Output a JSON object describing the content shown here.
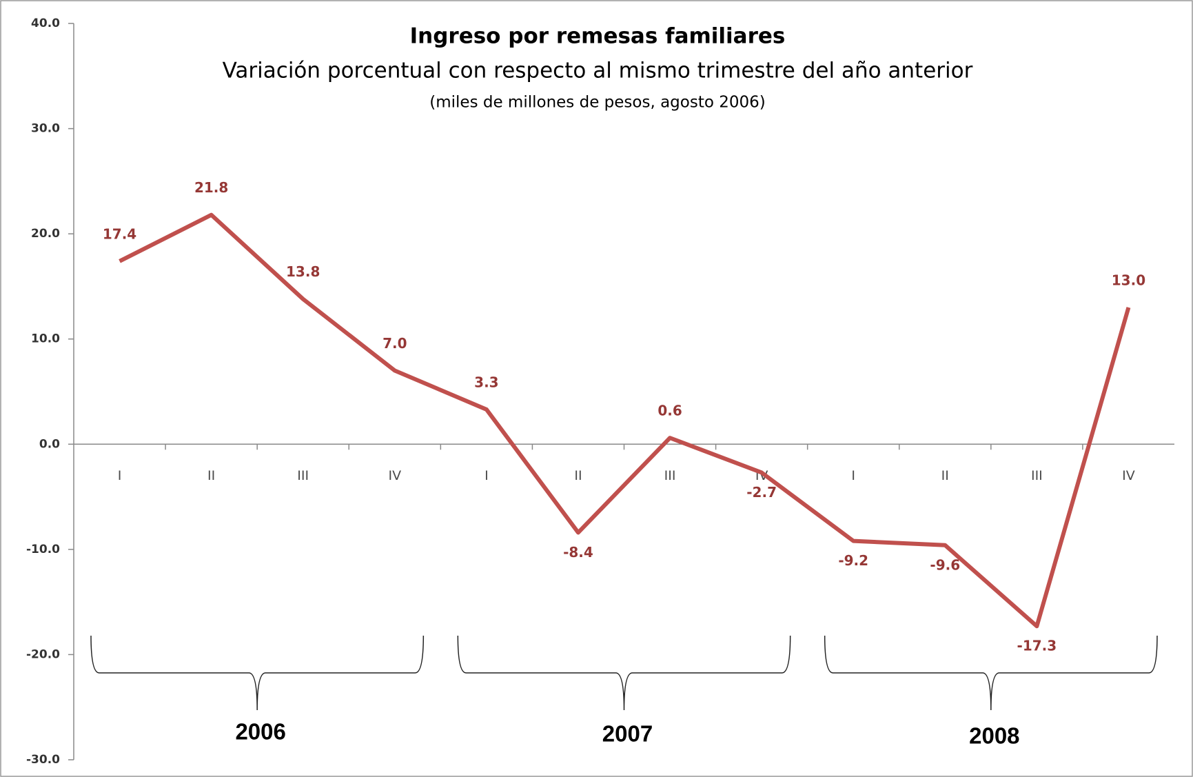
{
  "chart_data": {
    "type": "line",
    "title": "Ingreso por remesas familiares",
    "subtitle": "Variación porcentual con respecto al mismo trimestre del año anterior",
    "note": "(miles de millones de pesos, agosto 2006)",
    "categories": [
      "I",
      "II",
      "III",
      "IV",
      "I",
      "II",
      "III",
      "IV",
      "I",
      "II",
      "III",
      "IV"
    ],
    "year_labels": [
      "2006",
      "2007",
      "2008"
    ],
    "series": [
      {
        "color": "#c0504d",
        "values": [
          17.4,
          21.8,
          13.8,
          7.0,
          3.3,
          -8.4,
          0.6,
          -2.7,
          -9.2,
          -9.6,
          -17.3,
          13.0
        ],
        "value_labels": [
          "17.4",
          "21.8",
          "13.8",
          "7.0",
          "3.3",
          "-8.4",
          "0.6",
          "-2.7",
          "-9.2",
          "-9.6",
          "-17.3",
          "13.0"
        ]
      }
    ],
    "ylim": [
      -30,
      40
    ],
    "yticks": [
      {
        "value": -30,
        "label": "-30.0"
      },
      {
        "value": -20,
        "label": "-20.0"
      },
      {
        "value": -10,
        "label": "-10.0"
      },
      {
        "value": 0,
        "label": "0.0"
      },
      {
        "value": 10,
        "label": "10.0"
      },
      {
        "value": 20,
        "label": "20.0"
      },
      {
        "value": 30,
        "label": "30.0"
      },
      {
        "value": 40,
        "label": "40.0"
      }
    ],
    "grid": false
  }
}
